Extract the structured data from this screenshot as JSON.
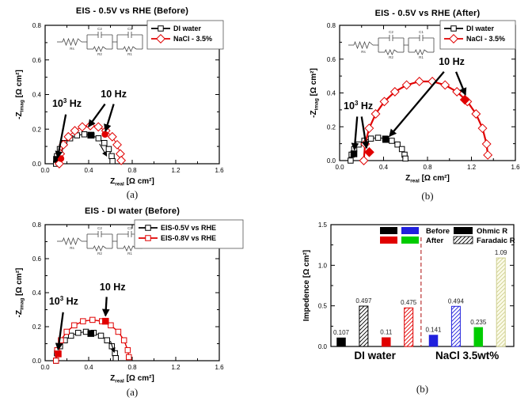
{
  "chart_data": [
    {
      "type": "scatter",
      "variant": "nyquist",
      "title": "EIS - 0.5V vs RHE (Before)",
      "caption": "(a)",
      "xlabel": {
        "base": "Z",
        "sub": "real",
        "rest": " [Ω  cm²]"
      },
      "ylabel": {
        "base": "-Z",
        "sub": "imag",
        "rest": " [Ω cm²]"
      },
      "xlim": [
        0,
        1.6
      ],
      "ylim": [
        0,
        0.8
      ],
      "xticks": [
        0,
        0.4,
        0.8,
        1.2,
        1.6
      ],
      "yticks": [
        0,
        0.2,
        0.4,
        0.6,
        0.8
      ],
      "xminor": 0.2,
      "yminor": 0.1,
      "circuit_labels": {
        "series_r": "Rs",
        "caps": [
          "C2",
          "C1"
        ],
        "resistors": [
          "R2",
          "R1"
        ]
      },
      "series": [
        {
          "name": "DI water",
          "color": "#000000",
          "marker": "square",
          "lw": 1,
          "points": [
            [
              0.1,
              0
            ],
            [
              0.109,
              0.044
            ],
            [
              0.135,
              0.085
            ],
            [
              0.176,
              0.12
            ],
            [
              0.23,
              0.147
            ],
            [
              0.293,
              0.164
            ],
            [
              0.36,
              0.17
            ],
            [
              0.427,
              0.164
            ],
            [
              0.49,
              0.147
            ],
            [
              0.544,
              0.12
            ],
            [
              0.585,
              0.085
            ],
            [
              0.611,
              0.044
            ],
            [
              0.619,
              0.015
            ]
          ],
          "filled": [
            [
              0.105,
              0.025
            ],
            [
              0.42,
              0.165
            ]
          ]
        },
        {
          "name": "NaCl - 3.5%",
          "color": "#e00000",
          "marker": "diamond",
          "lw": 1,
          "points": [
            [
              0.13,
              0
            ],
            [
              0.14,
              0.057
            ],
            [
              0.168,
              0.11
            ],
            [
              0.213,
              0.156
            ],
            [
              0.273,
              0.191
            ],
            [
              0.341,
              0.213
            ],
            [
              0.415,
              0.22
            ],
            [
              0.489,
              0.213
            ],
            [
              0.558,
              0.191
            ],
            [
              0.617,
              0.156
            ],
            [
              0.662,
              0.11
            ],
            [
              0.69,
              0.057
            ],
            [
              0.699,
              0.019
            ]
          ],
          "filled": [
            [
              0.145,
              0.03
            ],
            [
              0.55,
              0.17
            ]
          ],
          "filled_marker": "circle"
        }
      ],
      "legend": [
        {
          "label": "DI water",
          "color": "#000000",
          "marker": "square"
        },
        {
          "label": "NaCl - 3.5%",
          "color": "#e00000",
          "marker": "diamond"
        }
      ],
      "annotations": [
        {
          "text": {
            "base": "10",
            "sup": "3",
            "rest": " Hz"
          },
          "at": [
            0.2,
            0.33
          ],
          "arrows": [
            {
              "from": [
                0.19,
                0.285
              ],
              "to": [
                0.115,
                0.035
              ]
            }
          ]
        },
        {
          "text": {
            "base": "10",
            "sup": "",
            "rest": " Hz"
          },
          "at": [
            0.63,
            0.385
          ],
          "arrows": [
            {
              "from": [
                0.55,
                0.345
              ],
              "to": [
                0.4,
                0.215
              ]
            },
            {
              "from": [
                0.63,
                0.345
              ],
              "to": [
                0.555,
                0.19
              ]
            }
          ]
        },
        {
          "text": null,
          "thin": true,
          "arrows": [
            {
              "from": [
                0.5,
                0.115
              ],
              "to": [
                0.565,
                0.045
              ]
            }
          ]
        }
      ]
    },
    {
      "type": "scatter",
      "variant": "nyquist",
      "title": "EIS - 0.5V vs RHE (After)",
      "caption": "(b)",
      "xlabel": {
        "base": "Z",
        "sub": "real",
        "rest": " [Ω  cm²]"
      },
      "ylabel": {
        "base": "-Z",
        "sub": "imag",
        "rest": " [Ω cm²]"
      },
      "xlim": [
        0,
        1.6
      ],
      "ylim": [
        0,
        0.8
      ],
      "xticks": [
        0,
        0.4,
        0.8,
        1.2,
        1.6
      ],
      "yticks": [
        0,
        0.2,
        0.4,
        0.6,
        0.8
      ],
      "xminor": 0.2,
      "yminor": 0.1,
      "circuit_labels": {
        "series_r": "Rs",
        "caps": [
          "C2",
          "C1"
        ],
        "resistors": [
          "R2",
          "R1"
        ]
      },
      "series": [
        {
          "name": "DI water",
          "color": "#000000",
          "marker": "square",
          "lw": 1,
          "points": [
            [
              0.1,
              0
            ],
            [
              0.109,
              0.035
            ],
            [
              0.133,
              0.068
            ],
            [
              0.173,
              0.095
            ],
            [
              0.225,
              0.117
            ],
            [
              0.285,
              0.13
            ],
            [
              0.35,
              0.135
            ],
            [
              0.415,
              0.13
            ],
            [
              0.475,
              0.117
            ],
            [
              0.527,
              0.095
            ],
            [
              0.567,
              0.068
            ],
            [
              0.591,
              0.035
            ],
            [
              0.599,
              0.012
            ]
          ],
          "filled": [
            [
              0.13,
              0.04
            ],
            [
              0.42,
              0.125
            ]
          ]
        },
        {
          "name": "NaCl - 3.5%",
          "color": "#e00000",
          "marker": "diamond",
          "lw": 2.2,
          "points": [
            [
              0.22,
              0
            ],
            [
              0.232,
              0.098
            ],
            [
              0.269,
              0.191
            ],
            [
              0.328,
              0.276
            ],
            [
              0.407,
              0.349
            ],
            [
              0.503,
              0.407
            ],
            [
              0.61,
              0.447
            ],
            [
              0.726,
              0.468
            ],
            [
              0.844,
              0.468
            ],
            [
              0.96,
              0.447
            ],
            [
              1.068,
              0.407
            ],
            [
              1.163,
              0.349
            ],
            [
              1.242,
              0.276
            ],
            [
              1.301,
              0.191
            ],
            [
              1.338,
              0.098
            ],
            [
              1.349,
              0.033
            ]
          ],
          "filled": [
            [
              0.27,
              0.05
            ],
            [
              1.14,
              0.36
            ]
          ]
        }
      ],
      "legend": [
        {
          "label": "DI water",
          "color": "#000000",
          "marker": "square"
        },
        {
          "label": "NaCl - 3.5%",
          "color": "#e00000",
          "marker": "diamond"
        }
      ],
      "annotations": [
        {
          "text": {
            "base": "10",
            "sup": "3",
            "rest": " Hz"
          },
          "at": [
            0.17,
            0.305
          ],
          "arrows": [
            {
              "from": [
                0.16,
                0.26
              ],
              "to": [
                0.135,
                0.065
              ]
            },
            {
              "from": [
                0.2,
                0.26
              ],
              "to": [
                0.245,
                0.075
              ]
            }
          ]
        },
        {
          "text": {
            "base": "10",
            "sup": "",
            "rest": " Hz"
          },
          "at": [
            1.02,
            0.565
          ],
          "arrows": [
            {
              "from": [
                0.95,
                0.525
              ],
              "to": [
                0.455,
                0.145
              ]
            },
            {
              "from": [
                1.06,
                0.525
              ],
              "to": [
                1.145,
                0.39
              ]
            }
          ]
        }
      ]
    },
    {
      "type": "scatter",
      "variant": "nyquist",
      "title": "EIS - DI water (Before)",
      "caption": "(a)",
      "xlabel": {
        "base": "Z",
        "sub": "real",
        "rest": " [Ω  cm²]"
      },
      "ylabel": {
        "base": "-Z",
        "sub": "imag",
        "rest": " [Ω cm²]"
      },
      "xlim": [
        0,
        1.6
      ],
      "ylim": [
        0,
        0.8
      ],
      "xticks": [
        0,
        0.4,
        0.8,
        1.2,
        1.6
      ],
      "yticks": [
        0,
        0.2,
        0.4,
        0.6,
        0.8
      ],
      "xminor": 0.2,
      "yminor": 0.1,
      "circuit_labels": {
        "series_r": "Rs",
        "caps": [
          "C2",
          "C1"
        ],
        "resistors": [
          "R2",
          "R1"
        ]
      },
      "series": [
        {
          "name": "EIS-0.5V vs RHE",
          "color": "#000000",
          "marker": "square",
          "lw": 1,
          "points": [
            [
              0.1,
              0
            ],
            [
              0.109,
              0.044
            ],
            [
              0.137,
              0.085
            ],
            [
              0.181,
              0.12
            ],
            [
              0.238,
              0.147
            ],
            [
              0.304,
              0.164
            ],
            [
              0.375,
              0.17
            ],
            [
              0.446,
              0.164
            ],
            [
              0.513,
              0.147
            ],
            [
              0.569,
              0.12
            ],
            [
              0.613,
              0.085
            ],
            [
              0.641,
              0.044
            ],
            [
              0.649,
              0.015
            ]
          ],
          "filled": [
            [
              0.42,
              0.16
            ]
          ]
        },
        {
          "name": "EIS-0.8V vs RHE",
          "color": "#e00000",
          "marker": "square",
          "lw": 1.4,
          "points": [
            [
              0.1,
              0
            ],
            [
              0.111,
              0.062
            ],
            [
              0.145,
              0.12
            ],
            [
              0.198,
              0.17
            ],
            [
              0.268,
              0.208
            ],
            [
              0.348,
              0.232
            ],
            [
              0.435,
              0.24
            ],
            [
              0.522,
              0.232
            ],
            [
              0.603,
              0.208
            ],
            [
              0.672,
              0.17
            ],
            [
              0.725,
              0.12
            ],
            [
              0.759,
              0.062
            ],
            [
              0.769,
              0.021
            ]
          ],
          "filled": [
            [
              0.12,
              0.04
            ],
            [
              0.555,
              0.232
            ]
          ]
        }
      ],
      "legend": [
        {
          "label": "EIS-0.5V vs RHE",
          "color": "#000000",
          "marker": "square"
        },
        {
          "label": "EIS-0.8V vs RHE",
          "color": "#e00000",
          "marker": "square"
        }
      ],
      "annotations": [
        {
          "text": {
            "base": "10",
            "sup": "3",
            "rest": " Hz"
          },
          "at": [
            0.17,
            0.33
          ],
          "arrows": [
            {
              "from": [
                0.165,
                0.285
              ],
              "to": [
                0.12,
                0.065
              ]
            }
          ]
        },
        {
          "text": {
            "base": "10",
            "sup": "",
            "rest": " Hz"
          },
          "at": [
            0.62,
            0.415
          ],
          "arrows": [
            {
              "from": [
                0.565,
                0.375
              ],
              "to": [
                0.555,
                0.265
              ]
            }
          ]
        },
        {
          "text": null,
          "thin": true,
          "arrows": [
            {
              "from": [
                0.6,
                0.115
              ],
              "to": [
                0.635,
                0.05
              ]
            }
          ]
        }
      ]
    },
    {
      "type": "bar",
      "caption": "(b)",
      "ylabel": "Impedence [Ω cm²]",
      "ylim": [
        0,
        1.5
      ],
      "yticks": [
        0,
        0.5,
        1.0,
        1.5
      ],
      "yminor": 0.25,
      "groups": [
        {
          "label": "DI water",
          "bars": [
            {
              "value": 0.107,
              "label": "0.107",
              "color": "#000000",
              "pattern": "solid"
            },
            {
              "value": 0.497,
              "label": "0.497",
              "color": "#000000",
              "pattern": "hatch"
            },
            {
              "value": 0.11,
              "label": "0.11",
              "color": "#e00000",
              "pattern": "solid"
            },
            {
              "value": 0.475,
              "label": "0.475",
              "color": "#e00000",
              "pattern": "hatch"
            }
          ]
        },
        {
          "label": "NaCl 3.5wt%",
          "bars": [
            {
              "value": 0.141,
              "label": "0.141",
              "color": "#2020dd",
              "pattern": "solid"
            },
            {
              "value": 0.494,
              "label": "0.494",
              "color": "#2020dd",
              "pattern": "hatch"
            },
            {
              "value": 0.235,
              "label": "0.235",
              "color": "#00cc00",
              "pattern": "solid"
            },
            {
              "value": 1.09,
              "label": "1.09",
              "color": "#cfcf8f",
              "pattern": "hatch",
              "fill_bg": "#fbfbe9"
            }
          ]
        }
      ],
      "separator_color": "#bb3333",
      "legend_condition": [
        {
          "label": "Before",
          "swatches": [
            "#000000",
            "#2020dd"
          ]
        },
        {
          "label": "After",
          "swatches": [
            "#e00000",
            "#00cc00"
          ]
        }
      ],
      "legend_type": [
        {
          "label": "Ohmic R",
          "pattern": "solid",
          "color": "#000000"
        },
        {
          "label": "Faradaic R",
          "pattern": "hatch",
          "color": "#000000"
        }
      ]
    }
  ]
}
